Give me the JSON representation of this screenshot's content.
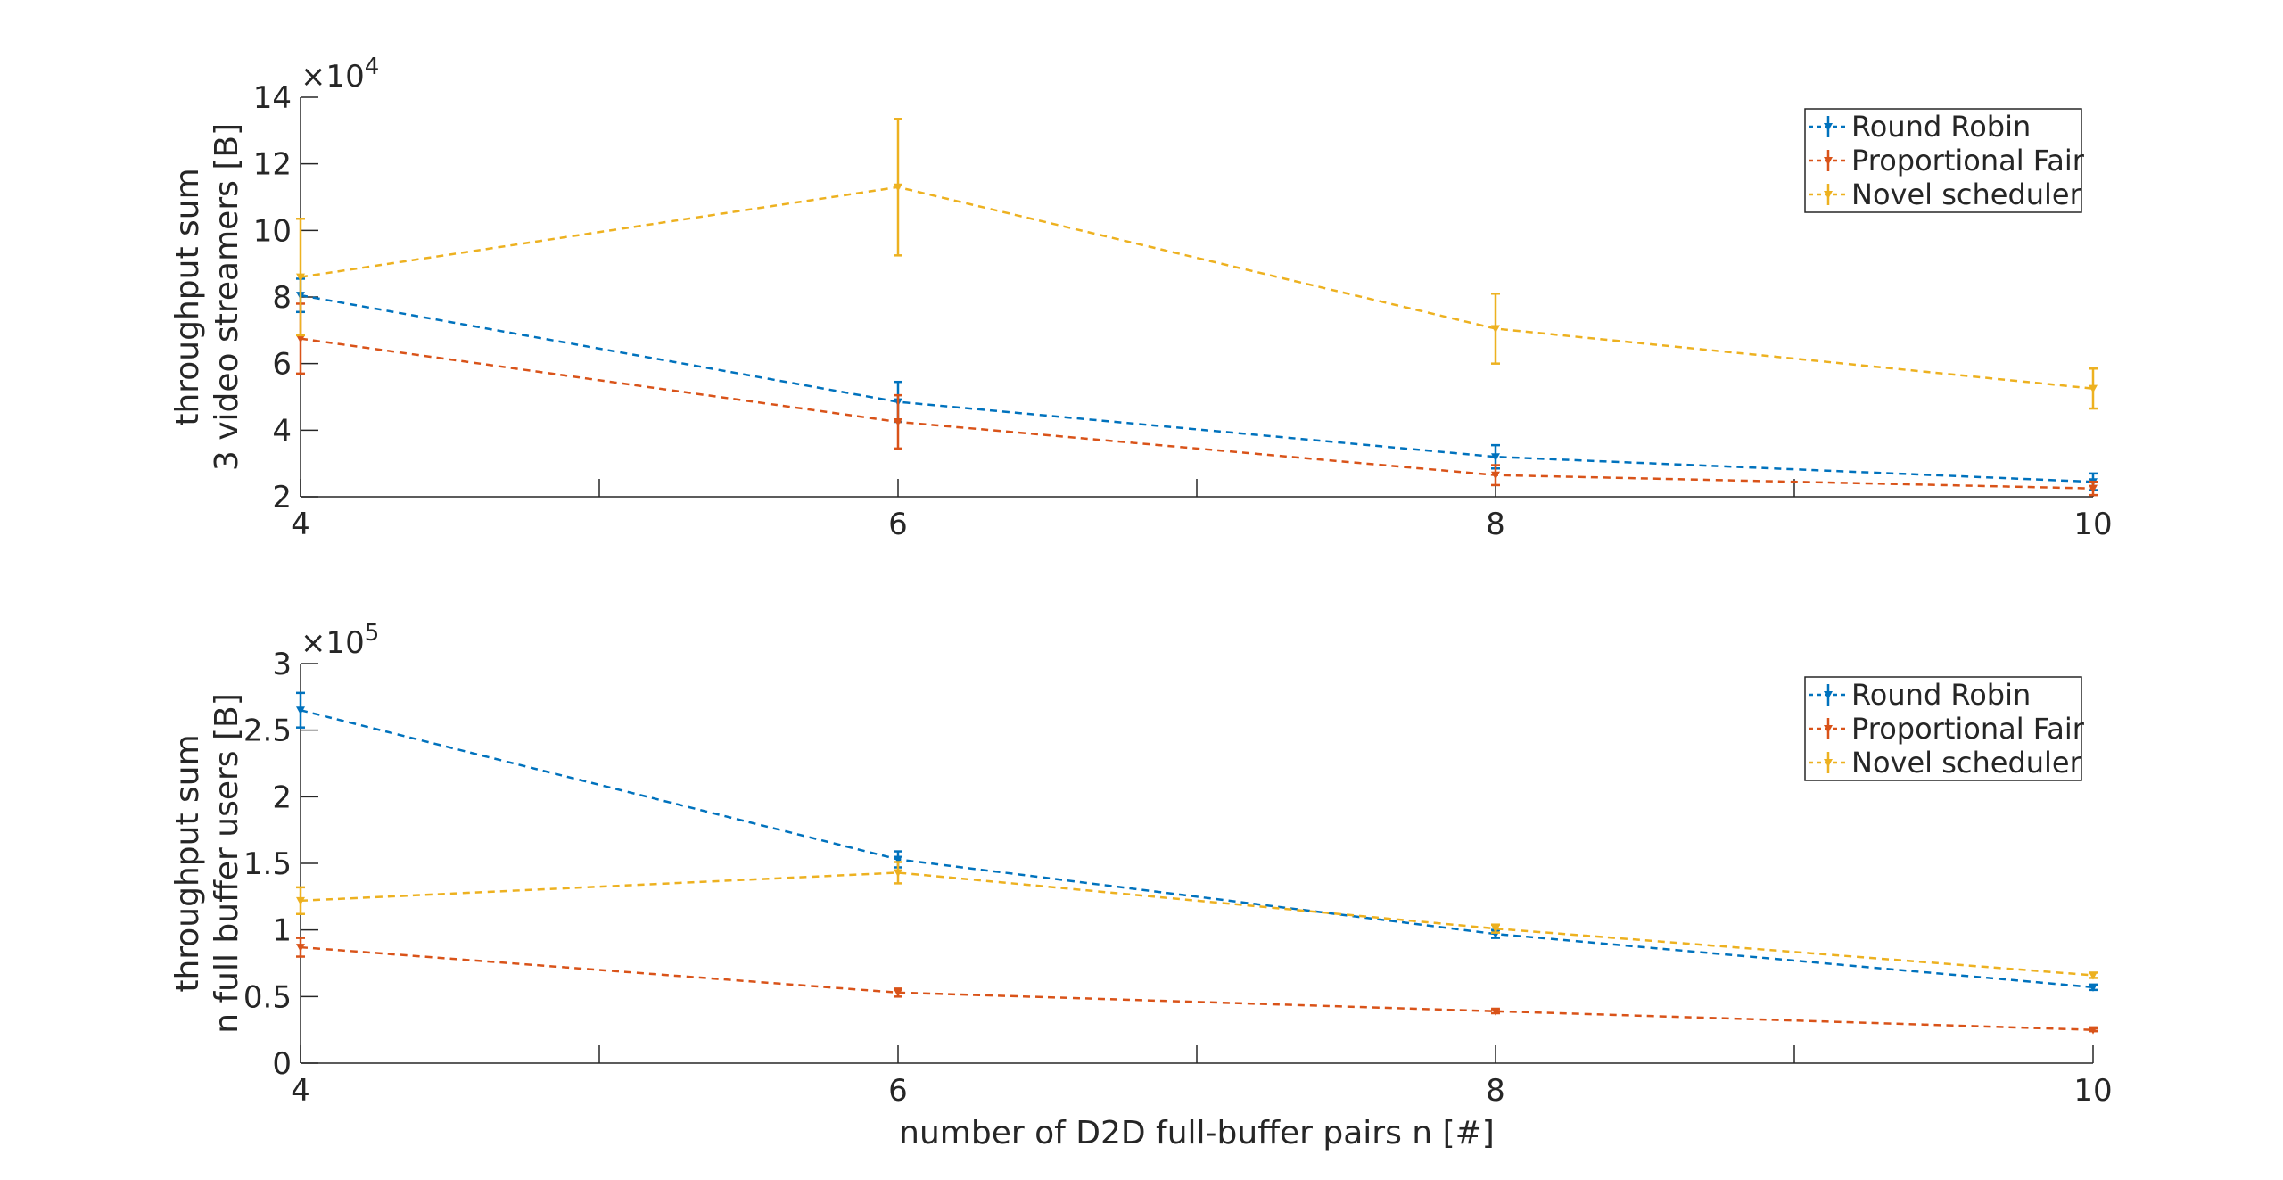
{
  "chart_data": [
    {
      "type": "line",
      "x": [
        4,
        6,
        8,
        10
      ],
      "xticks": [
        "4",
        "6",
        "8",
        "10"
      ],
      "xlim": [
        4,
        10
      ],
      "ylim": [
        2,
        14
      ],
      "yticks": [
        "2",
        "4",
        "6",
        "8",
        "10",
        "12",
        "14"
      ],
      "exponent_base": "×10",
      "exponent_power": "4",
      "ylabel_line1": "throughput sum",
      "ylabel_line2": "3 video streamers [B]",
      "xlabel": "",
      "legend_position": "top-right",
      "error_bars": true,
      "series": [
        {
          "name": "Round Robin",
          "color": "#0072BD",
          "values": [
            8.05,
            4.85,
            3.2,
            2.45
          ],
          "err": [
            0.5,
            0.6,
            0.35,
            0.25
          ]
        },
        {
          "name": "Proportional Fair",
          "color": "#D95319",
          "values": [
            6.75,
            4.25,
            2.65,
            2.25
          ],
          "err": [
            1.05,
            0.8,
            0.3,
            0.2
          ]
        },
        {
          "name": "Novel scheduler",
          "color": "#EDB120",
          "values": [
            8.6,
            11.3,
            7.05,
            5.25
          ],
          "err": [
            1.75,
            2.05,
            1.05,
            0.6
          ]
        }
      ]
    },
    {
      "type": "line",
      "x": [
        4,
        6,
        8,
        10
      ],
      "xticks": [
        "4",
        "6",
        "8",
        "10"
      ],
      "xlim": [
        4,
        10
      ],
      "ylim": [
        0,
        3
      ],
      "yticks": [
        "0",
        "0.5",
        "1",
        "1.5",
        "2",
        "2.5",
        "3"
      ],
      "exponent_base": "×10",
      "exponent_power": "5",
      "ylabel_line1": "throughput sum",
      "ylabel_line2": "n full buffer users [B]",
      "xlabel": "number of D2D full-buffer pairs n [#]",
      "legend_position": "top-right",
      "error_bars": true,
      "series": [
        {
          "name": "Round Robin",
          "color": "#0072BD",
          "values": [
            2.65,
            1.53,
            0.97,
            0.57
          ],
          "err": [
            0.13,
            0.06,
            0.03,
            0.02
          ]
        },
        {
          "name": "Proportional Fair",
          "color": "#D95319",
          "values": [
            0.87,
            0.53,
            0.39,
            0.25
          ],
          "err": [
            0.07,
            0.03,
            0.015,
            0.01
          ]
        },
        {
          "name": "Novel scheduler",
          "color": "#EDB120",
          "values": [
            1.22,
            1.43,
            1.01,
            0.66
          ],
          "err": [
            0.1,
            0.08,
            0.03,
            0.02
          ]
        }
      ]
    }
  ]
}
